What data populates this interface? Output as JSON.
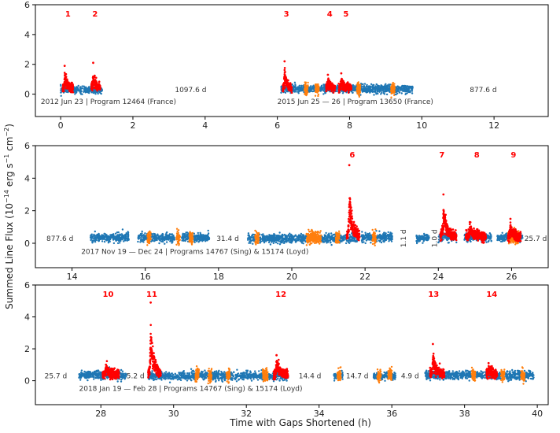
{
  "chart_data": {
    "type": "scatter",
    "ylabel_main": "Summed Line Flux (10",
    "ylabel_exp1": "−14",
    "ylabel_mid": " erg s",
    "ylabel_exp2": "−1",
    "ylabel_mid2": " cm",
    "ylabel_exp3": "−2",
    "ylabel_end": ")",
    "xlabel": "Time with Gaps Shortened (h)",
    "colors": {
      "quiescent": "#1f77b4",
      "flare": "#ff0000",
      "highlight": "#ff7f0e"
    },
    "panels": [
      {
        "xlim": [
          -0.7,
          13.5
        ],
        "ylim": [
          -1.5,
          6
        ],
        "xticks": [
          0,
          2,
          4,
          6,
          8,
          10,
          12
        ],
        "yticks": [
          0,
          2,
          4,
          6
        ],
        "segments": [
          {
            "x0": 0.0,
            "x1": 1.15,
            "level": 0.3,
            "spread": 0.12
          },
          {
            "x0": 6.1,
            "x1": 9.75,
            "level": 0.35,
            "spread": 0.14
          }
        ],
        "highlights": [
          {
            "x0": 6.75,
            "x1": 6.85
          },
          {
            "x0": 7.05,
            "x1": 7.15
          },
          {
            "x0": 8.2,
            "x1": 8.3
          },
          {
            "x0": 9.15,
            "x1": 9.25
          }
        ],
        "flares": [
          {
            "label": "1",
            "x": 0.2,
            "x0": 0.05,
            "x1": 0.35,
            "peak": 1.9
          },
          {
            "label": "2",
            "x": 0.95,
            "x0": 0.85,
            "x1": 1.1,
            "peak": 2.1
          },
          {
            "label": "3",
            "x": 6.25,
            "x0": 6.15,
            "x1": 6.4,
            "peak": 2.2
          },
          {
            "label": "4",
            "x": 7.45,
            "x0": 7.35,
            "x1": 7.6,
            "peak": 1.3
          },
          {
            "label": "5",
            "x": 7.9,
            "x0": 7.7,
            "x1": 8.05,
            "peak": 1.4
          }
        ],
        "annotations": [
          {
            "text": "2012 Jun 23 | Program 12464 (France)",
            "x": -0.55,
            "y": -0.5,
            "anchor": "start",
            "rotate": false
          },
          {
            "text": "1097.6 d",
            "x": 3.6,
            "y": 0.3,
            "anchor": "middle",
            "rotate": false
          },
          {
            "text": "2015 Jun 25 — 26 | Program 13650 (France)",
            "x": 6.0,
            "y": -0.5,
            "anchor": "start",
            "rotate": false
          },
          {
            "text": "877.6 d",
            "x": 11.7,
            "y": 0.3,
            "anchor": "middle",
            "rotate": false
          }
        ]
      },
      {
        "xlim": [
          13.0,
          27.0
        ],
        "ylim": [
          -1.5,
          6
        ],
        "xticks": [
          14,
          16,
          18,
          20,
          22,
          24,
          26
        ],
        "yticks": [
          0,
          2,
          4,
          6
        ],
        "segments": [
          {
            "x0": 14.5,
            "x1": 15.55,
            "level": 0.35,
            "spread": 0.13
          },
          {
            "x0": 15.8,
            "x1": 16.8,
            "level": 0.35,
            "spread": 0.13
          },
          {
            "x0": 17.0,
            "x1": 17.75,
            "level": 0.35,
            "spread": 0.13
          },
          {
            "x0": 18.8,
            "x1": 21.8,
            "level": 0.3,
            "spread": 0.13
          },
          {
            "x0": 21.9,
            "x1": 22.75,
            "level": 0.35,
            "spread": 0.13
          },
          {
            "x0": 23.4,
            "x1": 23.75,
            "level": 0.3,
            "spread": 0.1
          },
          {
            "x0": 24.0,
            "x1": 24.5,
            "level": 0.35,
            "spread": 0.12
          },
          {
            "x0": 24.7,
            "x1": 25.45,
            "level": 0.35,
            "spread": 0.12
          },
          {
            "x0": 25.6,
            "x1": 26.3,
            "level": 0.35,
            "spread": 0.12
          }
        ],
        "highlights": [
          {
            "x0": 16.05,
            "x1": 16.15
          },
          {
            "x0": 16.85,
            "x1": 16.95
          },
          {
            "x0": 17.2,
            "x1": 17.3
          },
          {
            "x0": 19.0,
            "x1": 19.1
          },
          {
            "x0": 20.4,
            "x1": 20.8
          },
          {
            "x0": 21.2,
            "x1": 21.3
          },
          {
            "x0": 22.2,
            "x1": 22.3
          },
          {
            "x0": 25.9,
            "x1": 26.2
          }
        ],
        "flares": [
          {
            "label": "6",
            "x": 21.65,
            "x0": 21.5,
            "x1": 21.85,
            "peak": 4.8
          },
          {
            "label": "7",
            "x": 24.1,
            "x0": 24.05,
            "x1": 24.5,
            "peak": 3.0
          },
          {
            "label": "8",
            "x": 25.05,
            "x0": 24.75,
            "x1": 25.3,
            "peak": 1.3
          },
          {
            "label": "9",
            "x": 26.05,
            "x0": 25.9,
            "x1": 26.25,
            "peak": 1.5
          }
        ],
        "annotations": [
          {
            "text": "877.6 d",
            "x": 13.3,
            "y": 0.3,
            "anchor": "start",
            "rotate": false
          },
          {
            "text": "31.4 d",
            "x": 18.25,
            "y": 0.3,
            "anchor": "middle",
            "rotate": false
          },
          {
            "text": "2017 Nov 19 — Dec 24 | Programs 14767 (Sing) & 15174 (Loyd)",
            "x": 14.25,
            "y": -0.5,
            "anchor": "start",
            "rotate": false
          },
          {
            "text": "1.1 d",
            "x": 23.05,
            "y": 0.3,
            "anchor": "middle",
            "rotate": true
          },
          {
            "text": "1.0 d",
            "x": 23.9,
            "y": 0.3,
            "anchor": "middle",
            "rotate": true
          },
          {
            "text": "25.7 d",
            "x": 26.35,
            "y": 0.3,
            "anchor": "start",
            "rotate": false
          }
        ]
      },
      {
        "xlim": [
          26.2,
          40.3
        ],
        "ylim": [
          -1.5,
          6
        ],
        "xticks": [
          28,
          30,
          32,
          34,
          36,
          38,
          40
        ],
        "yticks": [
          0,
          2,
          4,
          6
        ],
        "segments": [
          {
            "x0": 27.4,
            "x1": 28.7,
            "level": 0.35,
            "spread": 0.13
          },
          {
            "x0": 29.3,
            "x1": 33.15,
            "level": 0.3,
            "spread": 0.13
          },
          {
            "x0": 34.4,
            "x1": 34.65,
            "level": 0.3,
            "spread": 0.12
          },
          {
            "x0": 35.5,
            "x1": 36.1,
            "level": 0.3,
            "spread": 0.12
          },
          {
            "x0": 36.9,
            "x1": 39.9,
            "level": 0.35,
            "spread": 0.13
          }
        ],
        "highlights": [
          {
            "x0": 30.6,
            "x1": 30.7
          },
          {
            "x0": 30.95,
            "x1": 31.05
          },
          {
            "x0": 31.45,
            "x1": 31.55
          },
          {
            "x0": 32.45,
            "x1": 32.6
          },
          {
            "x0": 34.5,
            "x1": 34.6
          },
          {
            "x0": 35.6,
            "x1": 35.7
          },
          {
            "x0": 35.9,
            "x1": 36.0
          },
          {
            "x0": 38.2,
            "x1": 38.3
          },
          {
            "x0": 39.0,
            "x1": 39.1
          },
          {
            "x0": 39.55,
            "x1": 39.65
          }
        ],
        "flares": [
          {
            "label": "10",
            "x": 28.2,
            "x0": 28.05,
            "x1": 28.5,
            "peak": 1.0
          },
          {
            "label": "11",
            "x": 29.4,
            "x0": 29.3,
            "x1": 29.65,
            "peak": 4.9
          },
          {
            "label": "12",
            "x": 32.95,
            "x0": 32.75,
            "x1": 33.15,
            "peak": 1.6
          },
          {
            "label": "13",
            "x": 37.15,
            "x0": 37.05,
            "x1": 37.45,
            "peak": 2.3
          },
          {
            "label": "14",
            "x": 38.75,
            "x0": 38.6,
            "x1": 38.9,
            "peak": 1.1
          }
        ],
        "annotations": [
          {
            "text": "25.7 d",
            "x": 26.45,
            "y": 0.3,
            "anchor": "start",
            "rotate": false
          },
          {
            "text": "5.2 d",
            "x": 28.95,
            "y": 0.3,
            "anchor": "middle",
            "rotate": false
          },
          {
            "text": "2018 Jan 19 — Feb 28 | Programs 14767 (Sing) & 15174 (Loyd)",
            "x": 27.4,
            "y": -0.5,
            "anchor": "start",
            "rotate": false
          },
          {
            "text": "14.4 d",
            "x": 33.75,
            "y": 0.3,
            "anchor": "middle",
            "rotate": false
          },
          {
            "text": "14.7 d",
            "x": 35.05,
            "y": 0.3,
            "anchor": "middle",
            "rotate": false
          },
          {
            "text": "4.9 d",
            "x": 36.5,
            "y": 0.3,
            "anchor": "middle",
            "rotate": false
          }
        ]
      }
    ]
  }
}
